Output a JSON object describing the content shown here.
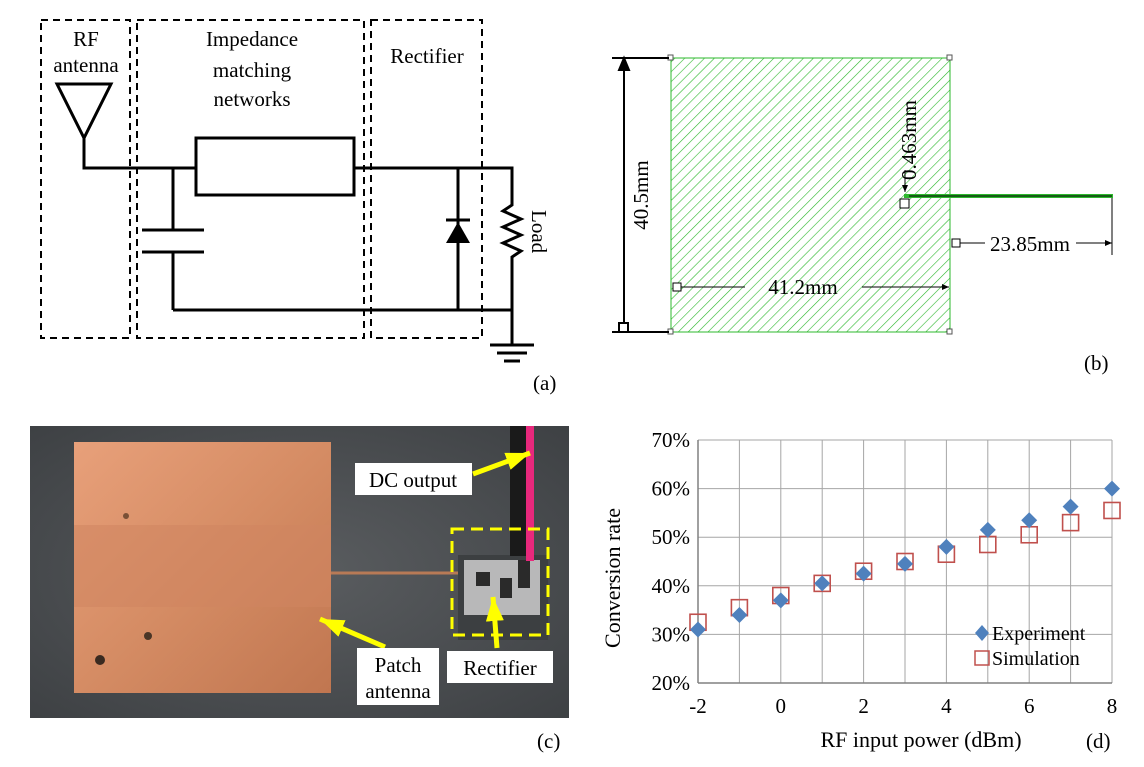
{
  "panel_a": {
    "block_rf": "RF",
    "block_rf2": "antenna",
    "block_imp1": "Impedance",
    "block_imp2": "matching",
    "block_imp3": "networks",
    "block_rect": "Rectifier",
    "load": "Load",
    "label": "(a)"
  },
  "panel_b": {
    "dim_height": "40.5mm",
    "dim_width": "41.2mm",
    "dim_feed_width": "0.463mm",
    "dim_feed_length": "23.85mm",
    "label": "(b)",
    "patch_color": "#2db82d"
  },
  "panel_c": {
    "dc_output": "DC output",
    "patch1": "Patch",
    "patch2": "antenna",
    "rectifier": "Rectifier",
    "label": "(c)",
    "arrow_color": "#ffff00"
  },
  "panel_d": {
    "label": "(d)",
    "chart_data": {
      "type": "scatter",
      "xlabel": "RF input power (dBm)",
      "ylabel": "Conversion rate",
      "xlim": [
        -2,
        8
      ],
      "ylim": [
        20,
        70
      ],
      "x_ticks": [
        "-2",
        "0",
        "2",
        "4",
        "6",
        "8"
      ],
      "y_ticks": [
        "20%",
        "30%",
        "40%",
        "50%",
        "60%",
        "70%"
      ],
      "grid": true,
      "legend_position": "bottom-right",
      "series": [
        {
          "name": "Experiment",
          "marker": "diamond",
          "color": "#4f81bd",
          "x": [
            -2,
            -1,
            0,
            1,
            2,
            3,
            4,
            5,
            6,
            7,
            8
          ],
          "y": [
            31,
            34,
            37,
            40.5,
            42.5,
            44.5,
            48,
            51.5,
            53.5,
            56.3,
            60
          ]
        },
        {
          "name": "Simulation",
          "marker": "square-open",
          "color": "#c0504d",
          "x": [
            -2,
            -1,
            0,
            1,
            2,
            3,
            4,
            5,
            6,
            7,
            8
          ],
          "y": [
            32.5,
            35.5,
            38,
            40.5,
            43,
            45,
            46.5,
            48.5,
            50.5,
            53,
            55.5
          ]
        }
      ]
    }
  }
}
